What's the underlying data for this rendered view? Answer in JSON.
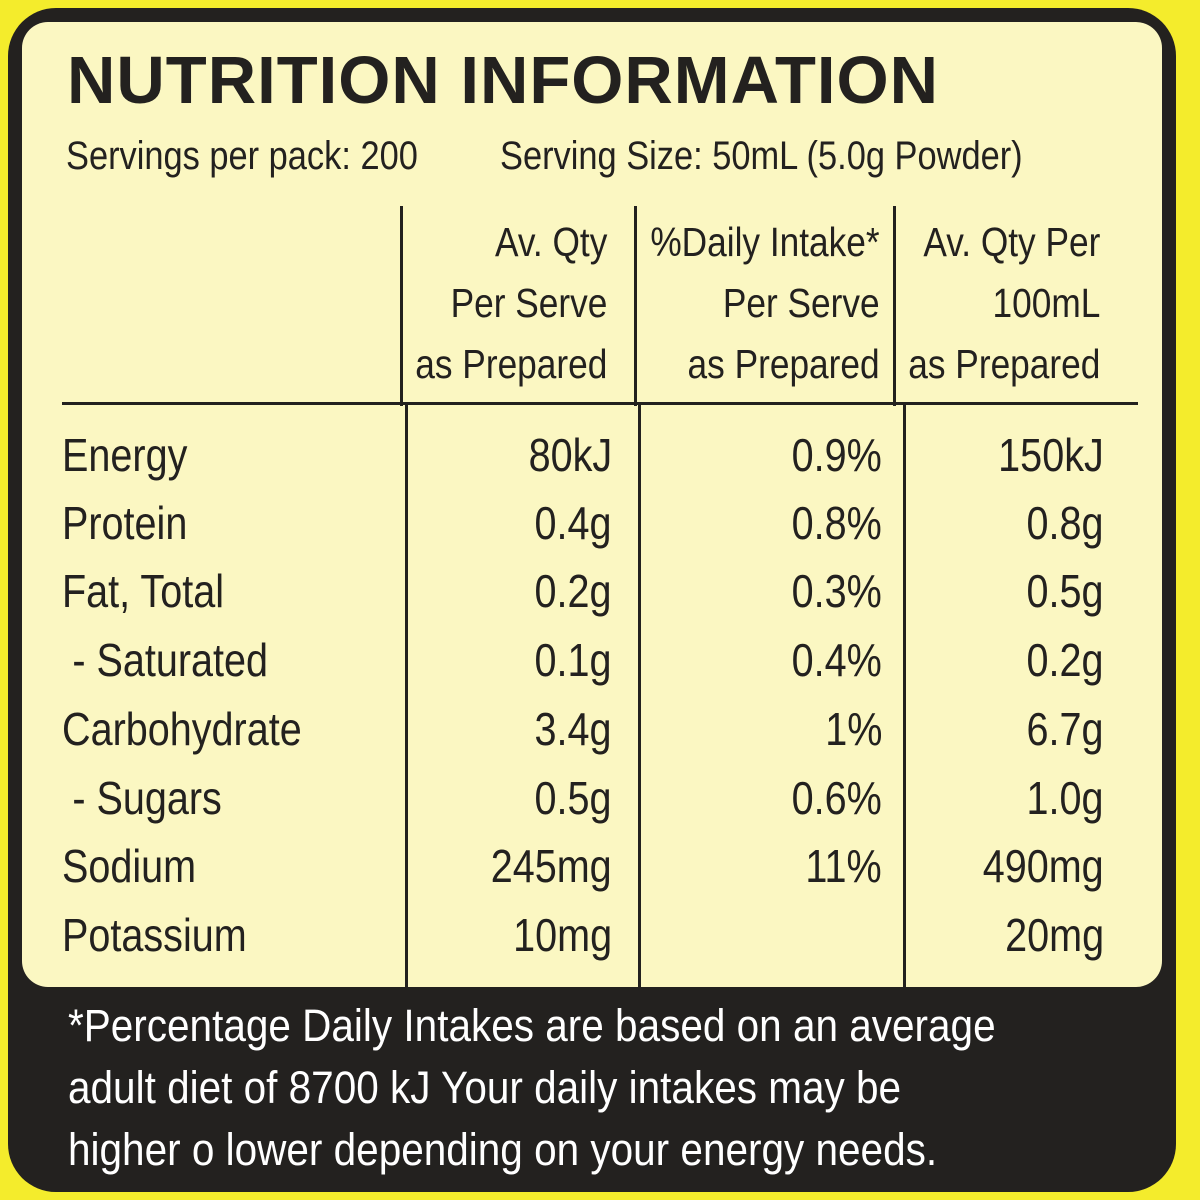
{
  "label": {
    "title": "NUTRITION INFORMATION",
    "servings_per_pack": "Servings per pack: 200",
    "serving_size": "Serving Size: 50mL (5.0g Powder)"
  },
  "columns": [
    {
      "lines": [
        "Av. Qty",
        "Per Serve",
        "as Prepared"
      ]
    },
    {
      "lines": [
        "%Daily Intake*",
        "Per Serve",
        "as Prepared"
      ]
    },
    {
      "lines": [
        "Av. Qty Per",
        "100mL",
        "as Prepared"
      ]
    }
  ],
  "rows": [
    {
      "name": "Energy",
      "per_serve": "80kJ",
      "daily_intake": "0.9%",
      "per_100ml": "150kJ"
    },
    {
      "name": "Protein",
      "per_serve": "0.4g",
      "daily_intake": "0.8%",
      "per_100ml": "0.8g"
    },
    {
      "name": "Fat, Total",
      "per_serve": "0.2g",
      "daily_intake": "0.3%",
      "per_100ml": "0.5g"
    },
    {
      "name": "- Saturated",
      "per_serve": "0.1g",
      "daily_intake": "0.4%",
      "per_100ml": "0.2g"
    },
    {
      "name": "Carbohydrate",
      "per_serve": "3.4g",
      "daily_intake": "1%",
      "per_100ml": "6.7g"
    },
    {
      "name": "- Sugars",
      "per_serve": "0.5g",
      "daily_intake": "0.6%",
      "per_100ml": "1.0g"
    },
    {
      "name": "Sodium",
      "per_serve": "245mg",
      "daily_intake": "11%",
      "per_100ml": "490mg"
    },
    {
      "name": "Potassium",
      "per_serve": "10mg",
      "daily_intake": "",
      "per_100ml": "20mg"
    }
  ],
  "footnote": {
    "line1": "*Percentage Daily Intakes are based on an average",
    "line2": "adult diet of 8700 kJ  Your daily intakes may be",
    "line3": "higher o  lower depending on your energy needs."
  },
  "colors": {
    "outer_yellow": "#f4ec2c",
    "panel_dark": "#23211f",
    "cream": "#fbf7c2",
    "text": "#23211f",
    "footnote_text": "#ffffff"
  }
}
